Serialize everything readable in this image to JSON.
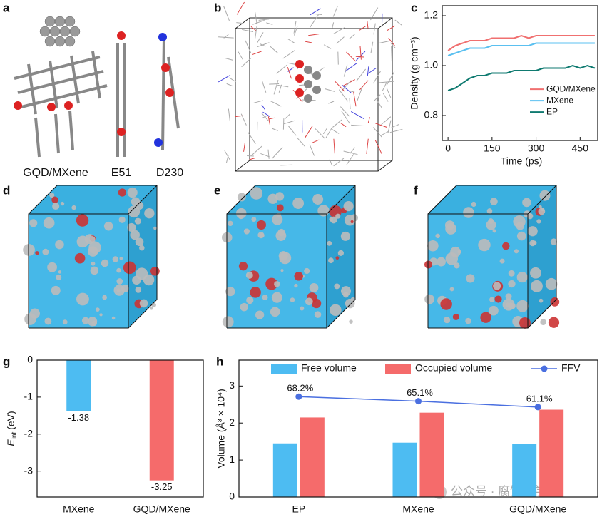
{
  "figure": {
    "panel_labels": [
      "a",
      "b",
      "d",
      "e",
      "f"
    ],
    "molecule_labels": [
      "GQD/MXene",
      "E51",
      "D230"
    ],
    "watermark": "公众号 · 腐蚀科学"
  },
  "chart_data": [
    {
      "panel": "c",
      "type": "line",
      "xlabel": "Time (ps)",
      "ylabel": "Density (g cm⁻³)",
      "xlim": [
        -10,
        510
      ],
      "xticks": [
        0,
        150,
        300,
        450
      ],
      "ylim": [
        0.7,
        1.24
      ],
      "yticks": [
        0.8,
        {
          "value": 1.0,
          "label": "1.0"
        },
        1.2
      ],
      "legend": "center-right",
      "x": [
        0,
        25,
        50,
        75,
        100,
        125,
        150,
        175,
        200,
        225,
        250,
        275,
        300,
        325,
        350,
        375,
        400,
        425,
        450,
        475,
        500
      ],
      "series": [
        {
          "name": "GQD/MXene",
          "color": "#f07070",
          "values": [
            1.06,
            1.08,
            1.09,
            1.1,
            1.1,
            1.1,
            1.11,
            1.11,
            1.11,
            1.11,
            1.12,
            1.11,
            1.12,
            1.12,
            1.12,
            1.12,
            1.12,
            1.12,
            1.12,
            1.12,
            1.12
          ]
        },
        {
          "name": "MXene",
          "color": "#5bc0f0",
          "values": [
            1.04,
            1.05,
            1.06,
            1.07,
            1.07,
            1.07,
            1.08,
            1.08,
            1.08,
            1.08,
            1.08,
            1.08,
            1.09,
            1.09,
            1.09,
            1.09,
            1.09,
            1.09,
            1.09,
            1.09,
            1.09
          ]
        },
        {
          "name": "EP",
          "color": "#0f7a70",
          "values": [
            0.9,
            0.91,
            0.93,
            0.95,
            0.96,
            0.96,
            0.97,
            0.97,
            0.97,
            0.98,
            0.98,
            0.98,
            0.98,
            0.99,
            0.99,
            0.99,
            0.99,
            1.0,
            0.99,
            1.0,
            0.99
          ]
        }
      ]
    },
    {
      "panel": "g",
      "type": "bar",
      "ylabel": {
        "symbol": "E",
        "subscript": "int",
        "unit": "(eV)"
      },
      "categories": [
        "MXene",
        "GQD/MXene"
      ],
      "values": [
        -1.38,
        -3.25
      ],
      "colors": [
        "#4dbcf2",
        "#f56b6b"
      ],
      "ylim": [
        -3.7,
        0
      ],
      "yticks": [
        0,
        -1,
        -2,
        -3
      ]
    },
    {
      "panel": "h",
      "type": "bar-line",
      "ylabel": "Volume (Å³ × 10⁴)",
      "categories": [
        "EP",
        "MXene",
        "GQD/MXene"
      ],
      "ylim": [
        0,
        3.7
      ],
      "yticks": [
        0,
        1,
        2,
        3
      ],
      "y2lim": [
        0,
        93
      ],
      "legend": "top",
      "series": [
        {
          "name": "Free volume",
          "color": "#4dbcf2",
          "values": [
            1.45,
            1.47,
            1.43
          ]
        },
        {
          "name": "Occupied volume",
          "color": "#f56b6b",
          "values": [
            2.15,
            2.28,
            2.36
          ]
        },
        {
          "name": "FFV",
          "color": "#4a6fe0",
          "axis": "y2",
          "values": [
            68.2,
            65.1,
            61.1
          ],
          "value_labels": [
            "68.2%",
            "65.1%",
            "61.1%"
          ]
        }
      ]
    }
  ]
}
